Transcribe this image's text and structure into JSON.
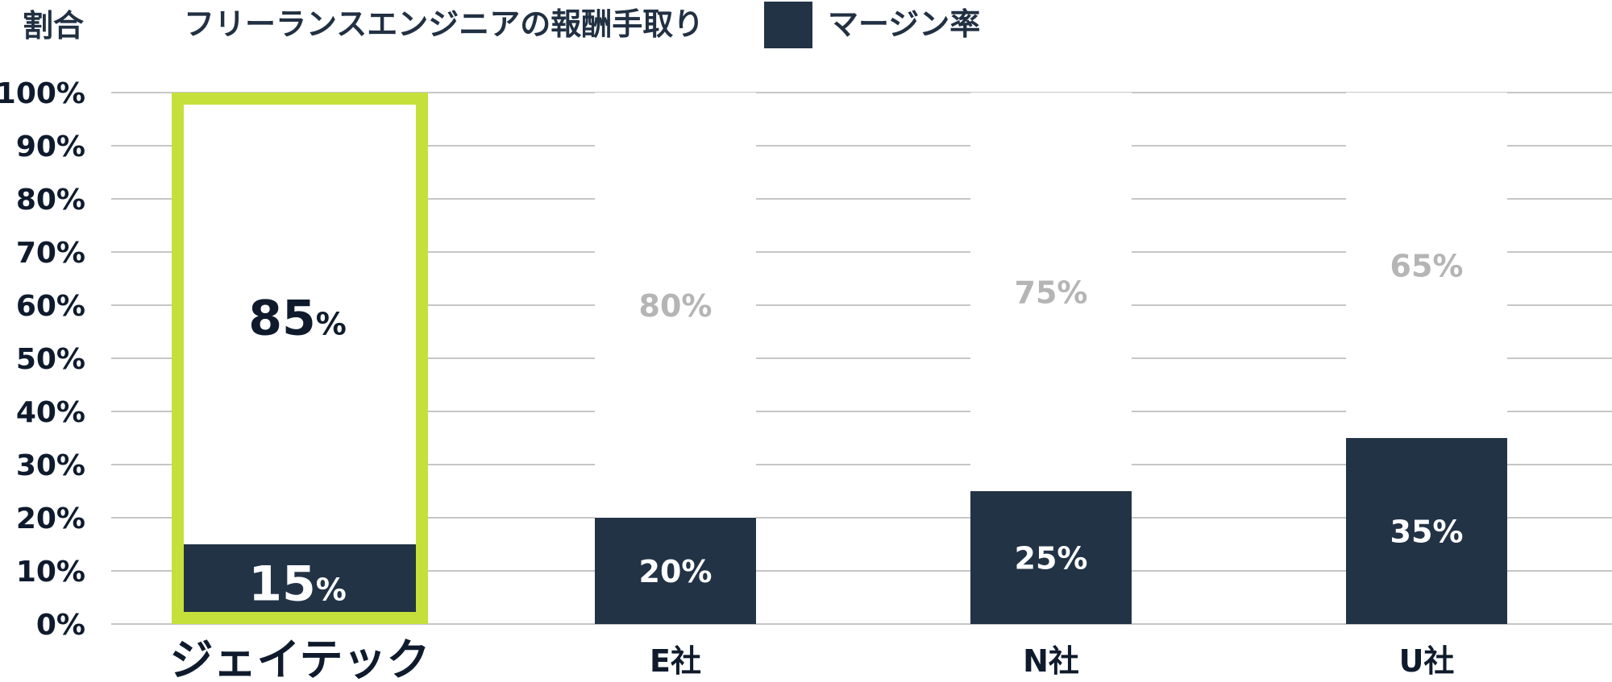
{
  "chart_data": {
    "type": "bar",
    "stacked": true,
    "ylabel": "割合",
    "ylim": [
      0,
      100
    ],
    "y_ticks": [
      "0%",
      "10%",
      "20%",
      "30%",
      "40%",
      "50%",
      "60%",
      "70%",
      "80%",
      "90%",
      "100%"
    ],
    "categories": [
      "ジェイテック",
      "E社",
      "N社",
      "U社"
    ],
    "highlighted_category": "ジェイテック",
    "series": [
      {
        "name": "マージン率",
        "values": [
          15,
          20,
          25,
          35
        ],
        "labels": [
          "15",
          "20%",
          "25%",
          "35%"
        ],
        "color": "#233346"
      },
      {
        "name": "フリーランスエンジニアの報酬手取り",
        "values": [
          85,
          80,
          75,
          65
        ],
        "labels": [
          "85",
          "80%",
          "75%",
          "65%"
        ],
        "color": "#ffffff"
      }
    ],
    "highlight_color": "#c6e03b",
    "grid": true,
    "legend_position": "top"
  },
  "percent_suffix": "%"
}
